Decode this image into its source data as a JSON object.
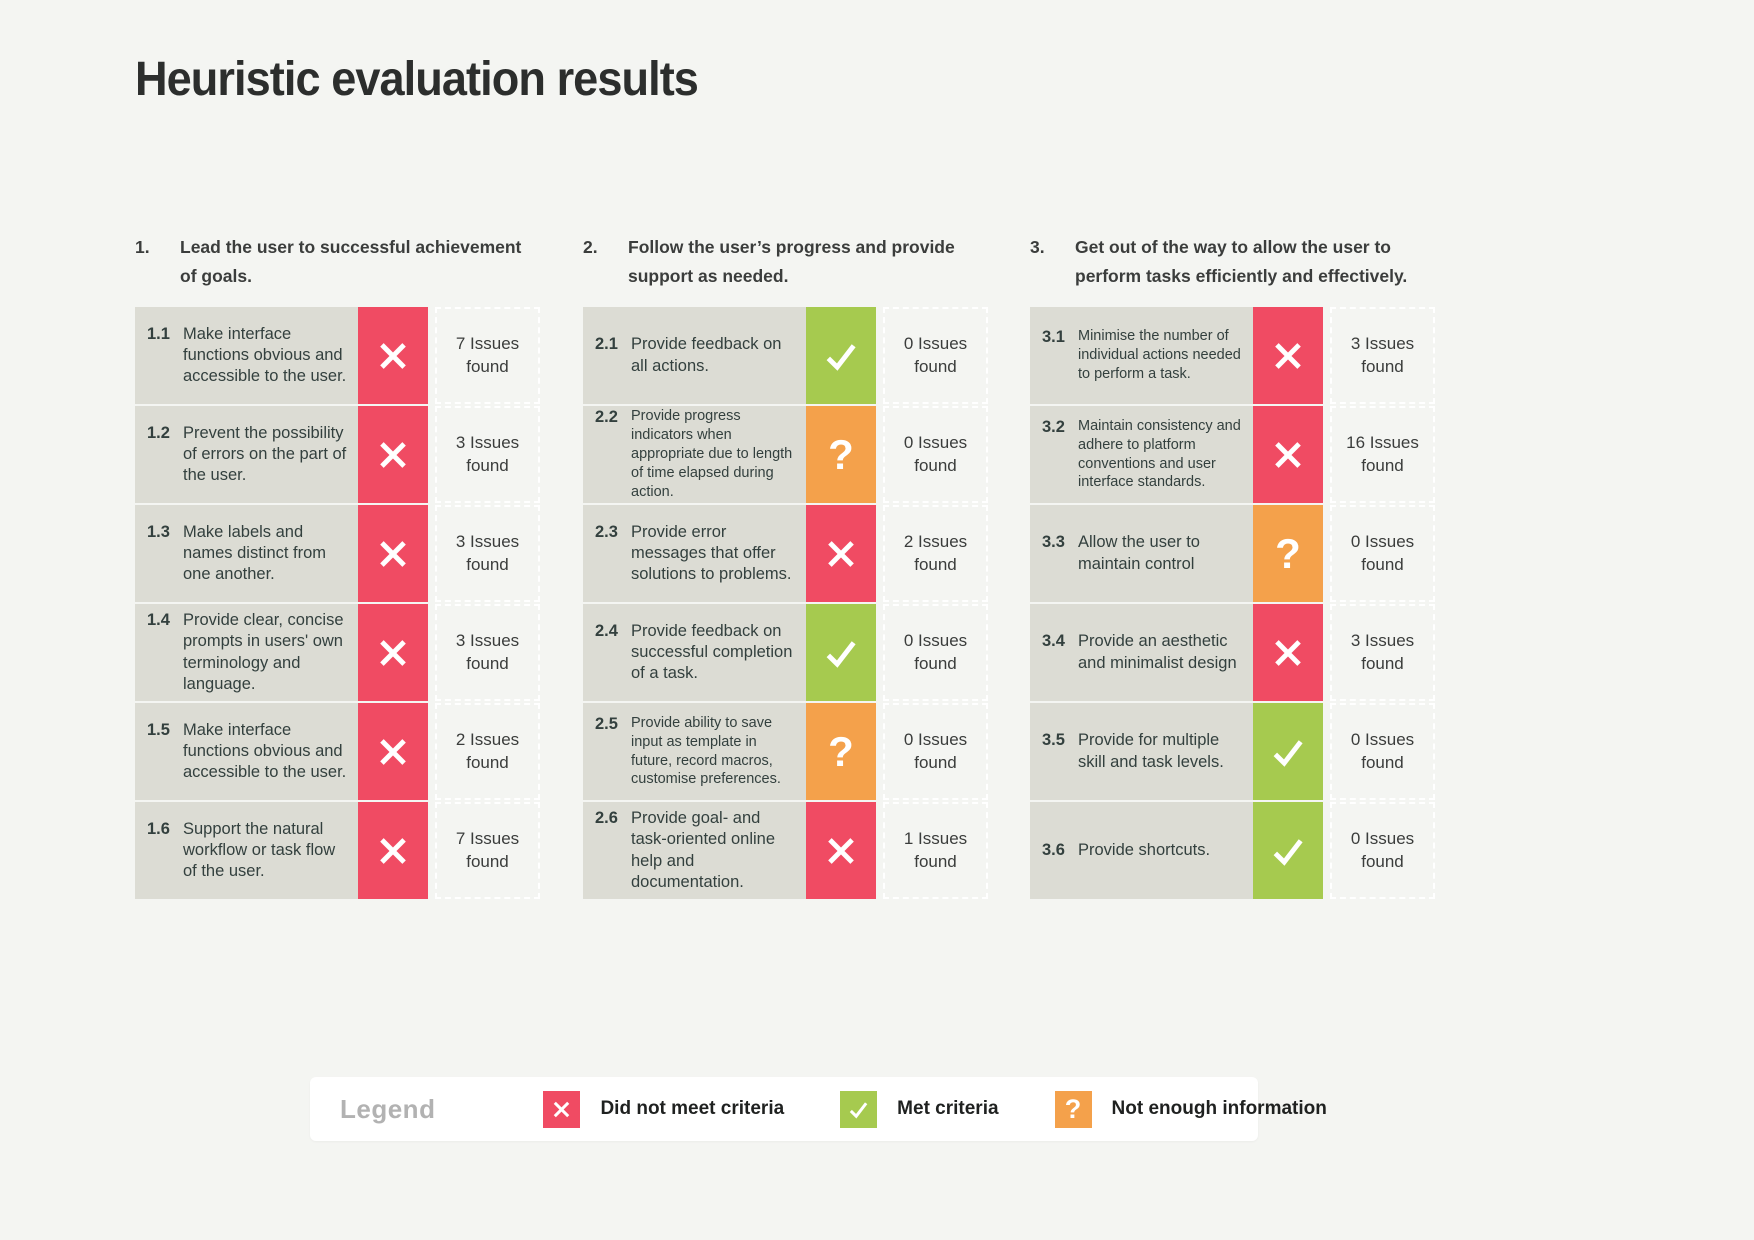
{
  "page": {
    "title": "Heuristic evaluation results",
    "background": "#f4f5f2"
  },
  "status_colors": {
    "fail": "#f04b63",
    "pass": "#a6ca4f",
    "unknown": "#f4a14b"
  },
  "status_icons": {
    "fail": "x-icon",
    "pass": "check-icon",
    "unknown": "question-icon"
  },
  "columns": [
    {
      "number": "1.",
      "heading": "Lead the user to successful achievement of goals.",
      "rows": [
        {
          "id": "1.1",
          "text": "Make interface functions obvious and accessible to the user.",
          "status": "fail",
          "issues": "7 Issues found",
          "small": false
        },
        {
          "id": "1.2",
          "text": "Prevent the possibility of errors on the part of the user.",
          "status": "fail",
          "issues": "3 Issues found",
          "small": false
        },
        {
          "id": "1.3",
          "text": "Make labels and names distinct from one another.",
          "status": "fail",
          "issues": "3 Issues found",
          "small": false
        },
        {
          "id": "1.4",
          "text": "Provide clear, concise prompts in users' own terminology and language.",
          "status": "fail",
          "issues": "3 Issues found",
          "small": false
        },
        {
          "id": "1.5",
          "text": "Make interface functions obvious and accessible to the user.",
          "status": "fail",
          "issues": "2 Issues found",
          "small": false
        },
        {
          "id": "1.6",
          "text": "Support the natural workflow or task flow of the user.",
          "status": "fail",
          "issues": "7 Issues found",
          "small": false
        }
      ]
    },
    {
      "number": "2.",
      "heading": "Follow the user’s progress and provide support as needed.",
      "rows": [
        {
          "id": "2.1",
          "text": "Provide feedback on all actions.",
          "status": "pass",
          "issues": "0 Issues found",
          "small": false
        },
        {
          "id": "2.2",
          "text": "Provide progress indicators when appropriate due to length of time elapsed during action.",
          "status": "unknown",
          "issues": "0 Issues found",
          "small": true
        },
        {
          "id": "2.3",
          "text": "Provide error messages that offer solutions to problems.",
          "status": "fail",
          "issues": "2 Issues found",
          "small": false
        },
        {
          "id": "2.4",
          "text": "Provide feedback on successful completion of a task.",
          "status": "pass",
          "issues": "0 Issues found",
          "small": false
        },
        {
          "id": "2.5",
          "text": "Provide ability to save input as template in future, record macros, customise preferences.",
          "status": "unknown",
          "issues": "0 Issues found",
          "small": true
        },
        {
          "id": "2.6",
          "text": "Provide goal- and task-oriented online help and documentation.",
          "status": "fail",
          "issues": "1 Issues found",
          "small": false
        }
      ]
    },
    {
      "number": "3.",
      "heading": "Get out of the way to allow the user to perform tasks efficiently and effectively.",
      "rows": [
        {
          "id": "3.1",
          "text": "Minimise the number of individual actions needed to perform a task.",
          "status": "fail",
          "issues": "3 Issues found",
          "small": true
        },
        {
          "id": "3.2",
          "text": "Maintain consistency and adhere to platform conventions and user interface standards.",
          "status": "fail",
          "issues": "16 Issues found",
          "small": true
        },
        {
          "id": "3.3",
          "text": "Allow the user to maintain control",
          "status": "unknown",
          "issues": "0 Issues found",
          "small": false
        },
        {
          "id": "3.4",
          "text": "Provide an aesthetic and minimalist design",
          "status": "fail",
          "issues": "3 Issues found",
          "small": false
        },
        {
          "id": "3.5",
          "text": "Provide for multiple skill and task levels.",
          "status": "pass",
          "issues": "0 Issues found",
          "small": false
        },
        {
          "id": "3.6",
          "text": "Provide shortcuts.",
          "status": "pass",
          "issues": "0 Issues found",
          "small": false
        }
      ]
    }
  ],
  "legend": {
    "title": "Legend",
    "items": [
      {
        "status": "fail",
        "label": "Did not meet criteria"
      },
      {
        "status": "pass",
        "label": "Met criteria"
      },
      {
        "status": "unknown",
        "label": "Not enough information"
      }
    ]
  }
}
